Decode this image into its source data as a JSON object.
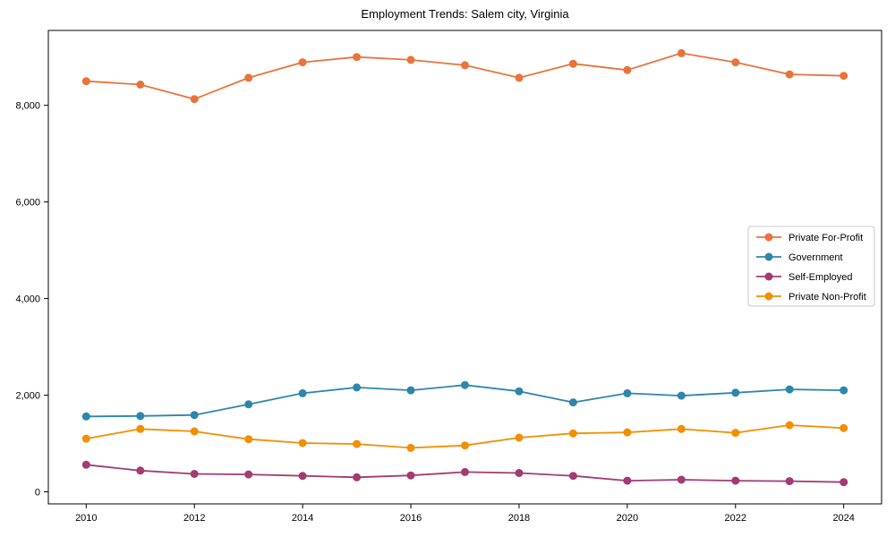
{
  "chart": {
    "background": "#ffffff",
    "spine_color": "#000000",
    "legend_border_color": "#c8c8c8"
  },
  "chart_data": {
    "type": "line",
    "title": "Employment Trends: Salem city, Virginia",
    "xlabel": "",
    "ylabel": "",
    "x": [
      2010,
      2011,
      2012,
      2013,
      2014,
      2015,
      2016,
      2017,
      2018,
      2019,
      2020,
      2021,
      2022,
      2023,
      2024
    ],
    "xticks": [
      2010,
      2012,
      2014,
      2016,
      2018,
      2020,
      2022,
      2024
    ],
    "yticks": [
      0,
      2000,
      4000,
      6000,
      8000
    ],
    "ytick_labels": [
      "0",
      "2,000",
      "4,000",
      "6,000",
      "8,000"
    ],
    "ylim": [
      -250,
      9550
    ],
    "grid": false,
    "legend_position": "center right",
    "marker": "circle",
    "series": [
      {
        "name": "Private For-Profit",
        "color": "#E8743B",
        "values": [
          8500,
          8430,
          8130,
          8570,
          8890,
          9000,
          8940,
          8830,
          8570,
          8860,
          8730,
          9080,
          8890,
          8640,
          8610
        ]
      },
      {
        "name": "Government",
        "color": "#2E86AB",
        "values": [
          1560,
          1570,
          1590,
          1810,
          2040,
          2160,
          2100,
          2210,
          2080,
          1850,
          2040,
          1990,
          2050,
          2120,
          2100
        ]
      },
      {
        "name": "Self-Employed",
        "color": "#A23B72",
        "values": [
          560,
          440,
          370,
          360,
          330,
          300,
          340,
          410,
          390,
          330,
          230,
          250,
          230,
          220,
          200
        ]
      },
      {
        "name": "Private Non-Profit",
        "color": "#F18F01",
        "values": [
          1100,
          1300,
          1250,
          1090,
          1010,
          990,
          910,
          960,
          1120,
          1210,
          1230,
          1300,
          1220,
          1380,
          1320
        ]
      }
    ]
  }
}
